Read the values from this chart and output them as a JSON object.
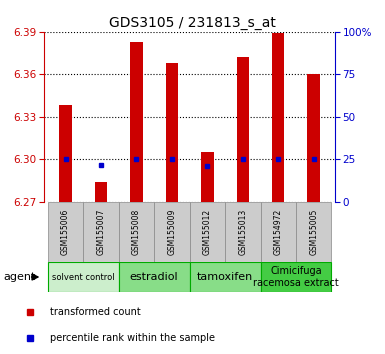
{
  "title": "GDS3105 / 231813_s_at",
  "samples": [
    "GSM155006",
    "GSM155007",
    "GSM155008",
    "GSM155009",
    "GSM155012",
    "GSM155013",
    "GSM154972",
    "GSM155005"
  ],
  "red_values": [
    6.338,
    6.284,
    6.383,
    6.368,
    6.305,
    6.372,
    6.389,
    6.36
  ],
  "blue_values": [
    6.3,
    6.296,
    6.3,
    6.3,
    6.295,
    6.3,
    6.3,
    6.3
  ],
  "ymin": 6.27,
  "ymax": 6.39,
  "yticks_left": [
    6.27,
    6.3,
    6.33,
    6.36,
    6.39
  ],
  "yticks_right_labels": [
    "0",
    "25",
    "50",
    "75",
    "100%"
  ],
  "groups": [
    {
      "label": "solvent control",
      "start": 0,
      "end": 2,
      "color": "#d8f0d8",
      "fontsize": 6
    },
    {
      "label": "estradiol",
      "start": 2,
      "end": 4,
      "color": "#88dd88",
      "fontsize": 8
    },
    {
      "label": "tamoxifen",
      "start": 4,
      "end": 6,
      "color": "#88dd88",
      "fontsize": 8
    },
    {
      "label": "Cimicifuga\nracemosa extract",
      "start": 6,
      "end": 8,
      "color": "#44cc44",
      "fontsize": 7
    }
  ],
  "bar_color": "#cc0000",
  "blue_color": "#0000cc",
  "bar_width": 0.35,
  "left_tick_color": "#cc0000",
  "right_tick_color": "#0000cc",
  "group_border_color": "#00aa00"
}
